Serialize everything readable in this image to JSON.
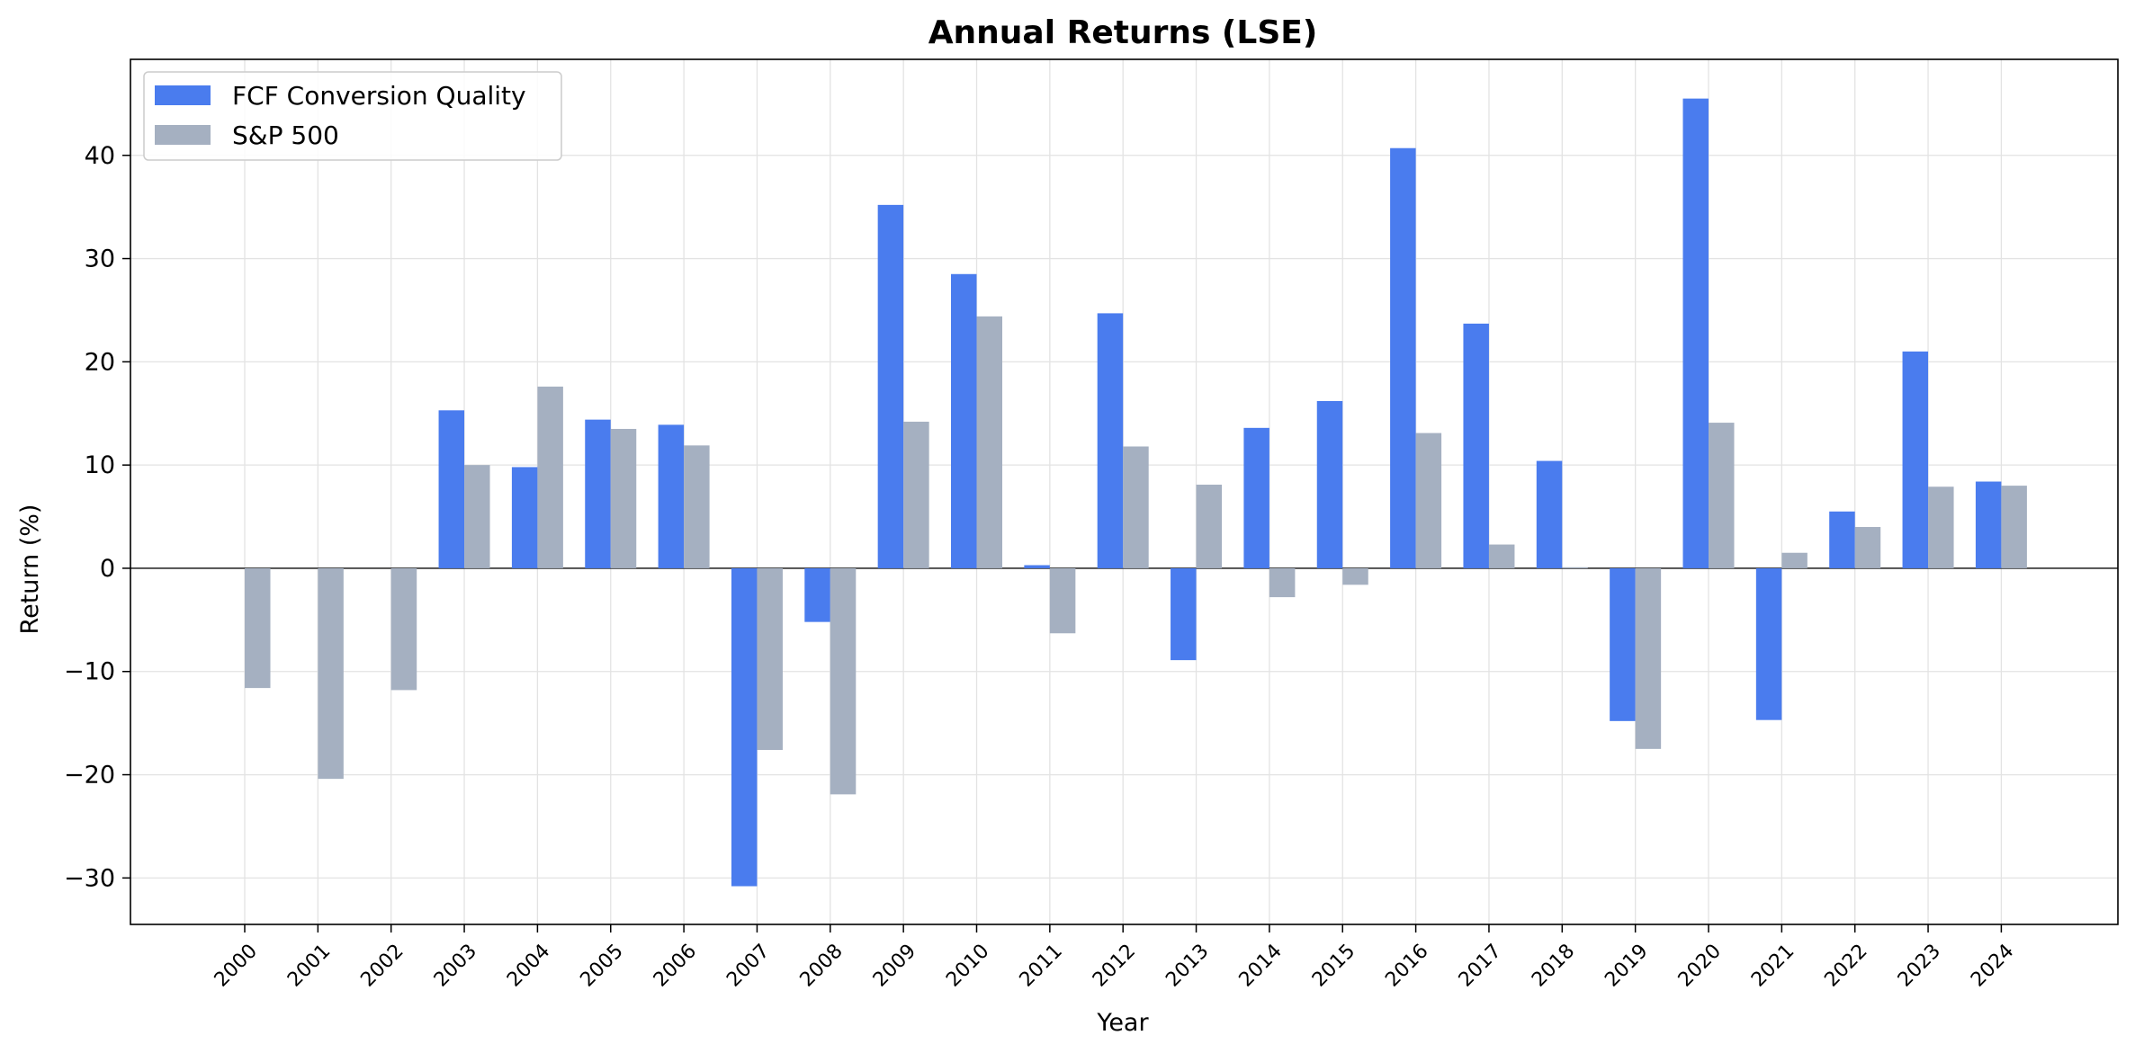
{
  "chart_data": {
    "type": "bar",
    "title": "Annual Returns (LSE)",
    "xlabel": "Year",
    "ylabel": "Return (%)",
    "ylim": [
      -34.5,
      49.3
    ],
    "yticks": [
      -30,
      -20,
      -10,
      0,
      10,
      20,
      30,
      40
    ],
    "grid": true,
    "legend_position": "top-left",
    "categories": [
      "2000",
      "2001",
      "2002",
      "2003",
      "2004",
      "2005",
      "2006",
      "2007",
      "2008",
      "2009",
      "2010",
      "2011",
      "2012",
      "2013",
      "2014",
      "2015",
      "2016",
      "2017",
      "2018",
      "2019",
      "2020",
      "2021",
      "2022",
      "2023",
      "2024"
    ],
    "series": [
      {
        "name": "FCF Conversion Quality",
        "color": "#4a7cee",
        "values": [
          0,
          0,
          0,
          15.3,
          9.8,
          14.4,
          13.9,
          -30.8,
          -5.2,
          35.2,
          28.5,
          0.3,
          24.7,
          -8.9,
          13.6,
          16.2,
          40.7,
          23.7,
          10.4,
          -14.8,
          45.5,
          -14.7,
          5.5,
          21.0,
          8.4
        ]
      },
      {
        "name": "S&P 500",
        "color": "#a5b0c1",
        "values": [
          -11.6,
          -20.4,
          -11.8,
          10.0,
          17.6,
          13.5,
          11.9,
          -17.6,
          -21.9,
          14.2,
          24.4,
          -6.3,
          11.8,
          8.1,
          -2.8,
          -1.6,
          13.1,
          2.3,
          0.1,
          -17.5,
          14.1,
          1.5,
          4.0,
          7.9,
          8.0
        ]
      }
    ]
  }
}
